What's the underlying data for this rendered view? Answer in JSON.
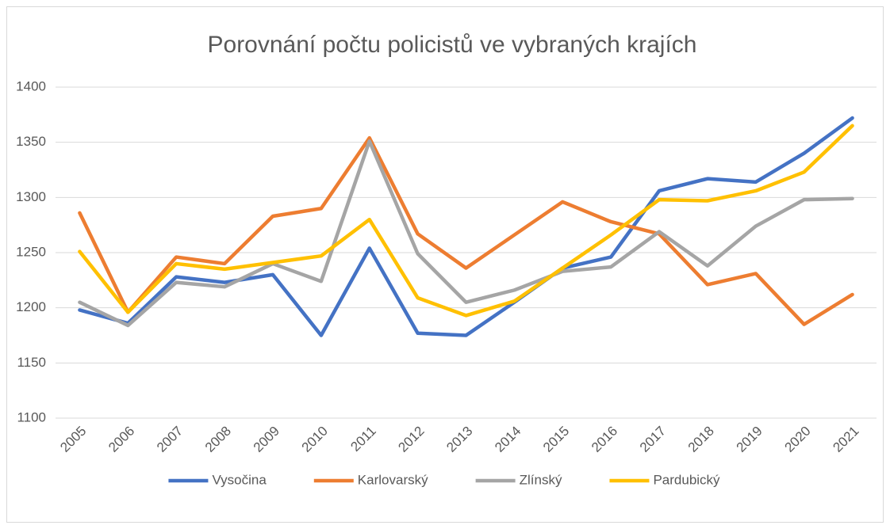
{
  "chart_data": {
    "type": "line",
    "title": "Porovnání počtu policistů ve vybraných krajích",
    "categories": [
      "2005",
      "2006",
      "2007",
      "2008",
      "2009",
      "2010",
      "2011",
      "2012",
      "2013",
      "2014",
      "2015",
      "2016",
      "2017",
      "2018",
      "2019",
      "2020",
      "2021"
    ],
    "series": [
      {
        "name": "Vysočina",
        "color": "#4472c4",
        "values": [
          1198,
          1186,
          1228,
          1223,
          1230,
          1175,
          1254,
          1177,
          1175,
          1205,
          1236,
          1246,
          1306,
          1317,
          1314,
          1340,
          1372
        ]
      },
      {
        "name": "Karlovarský",
        "color": "#ed7d31",
        "values": [
          1286,
          1196,
          1246,
          1240,
          1283,
          1290,
          1354,
          1267,
          1236,
          1266,
          1296,
          1278,
          1267,
          1221,
          1231,
          1185,
          1212
        ]
      },
      {
        "name": "Zlínský",
        "color": "#a5a5a5",
        "values": [
          1205,
          1184,
          1223,
          1219,
          1240,
          1224,
          1351,
          1249,
          1205,
          1216,
          1233,
          1237,
          1269,
          1238,
          1274,
          1298,
          1299
        ]
      },
      {
        "name": "Pardubický",
        "color": "#ffc000",
        "values": [
          1251,
          1196,
          1240,
          1235,
          1241,
          1247,
          1280,
          1209,
          1193,
          1206,
          1236,
          1266,
          1298,
          1297,
          1306,
          1323,
          1365
        ]
      }
    ],
    "ylim": [
      1100,
      1400
    ],
    "yticks": [
      1100,
      1150,
      1200,
      1250,
      1300,
      1350,
      1400
    ],
    "grid": true,
    "legend": "bottom"
  }
}
